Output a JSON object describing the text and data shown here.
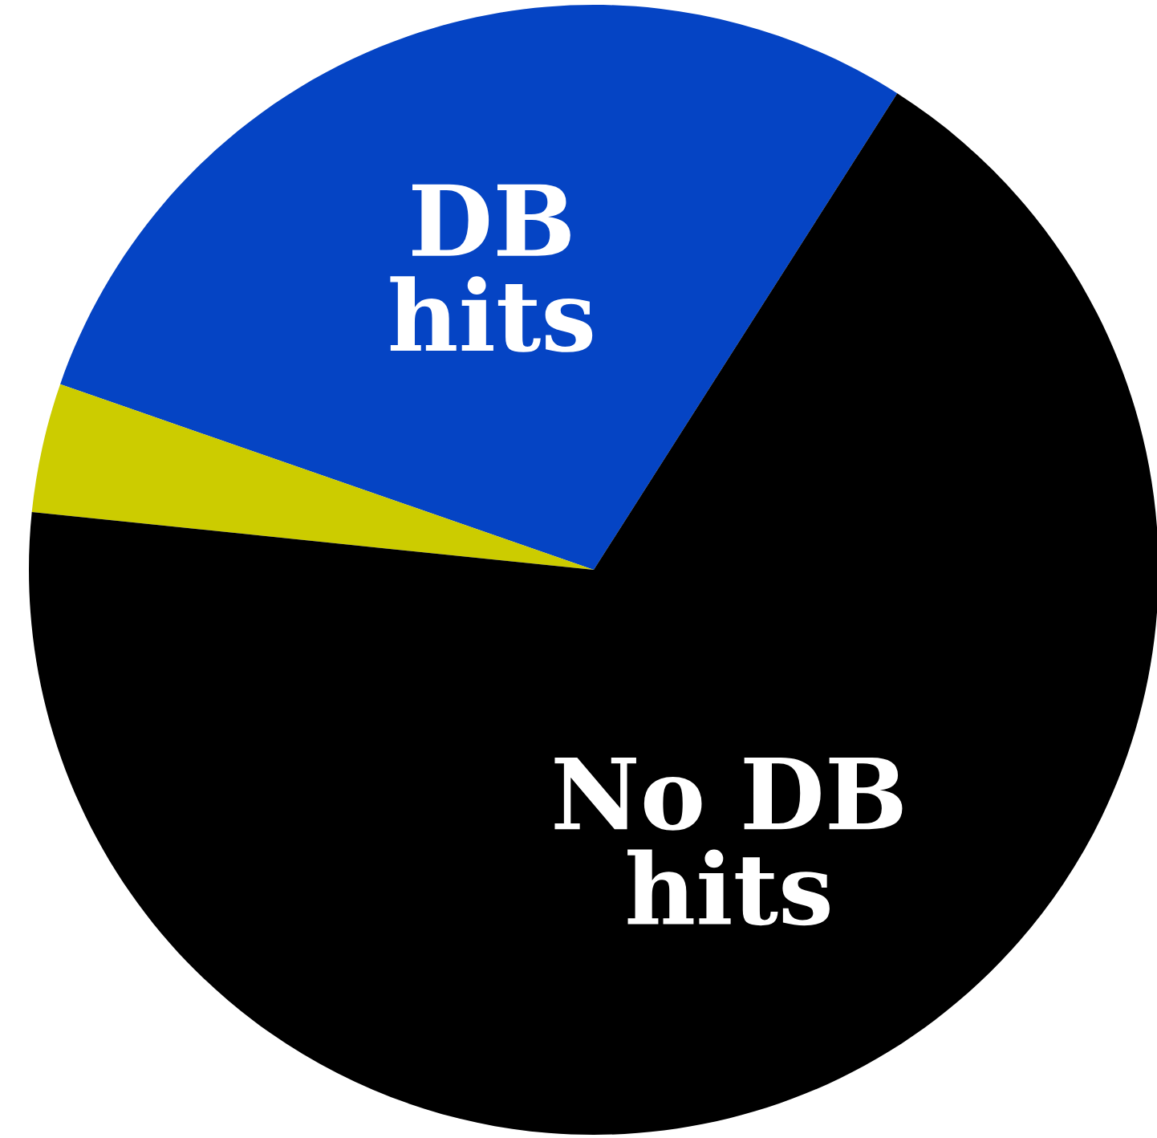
{
  "chart_data": {
    "type": "pie",
    "categories": [
      "DB\nhits",
      null,
      "No DB\nhits"
    ],
    "values": [
      28.7,
      3.7,
      67.6
    ],
    "colors": [
      "#0544c4",
      "#cccc00",
      "#000000"
    ],
    "legend": false
  }
}
